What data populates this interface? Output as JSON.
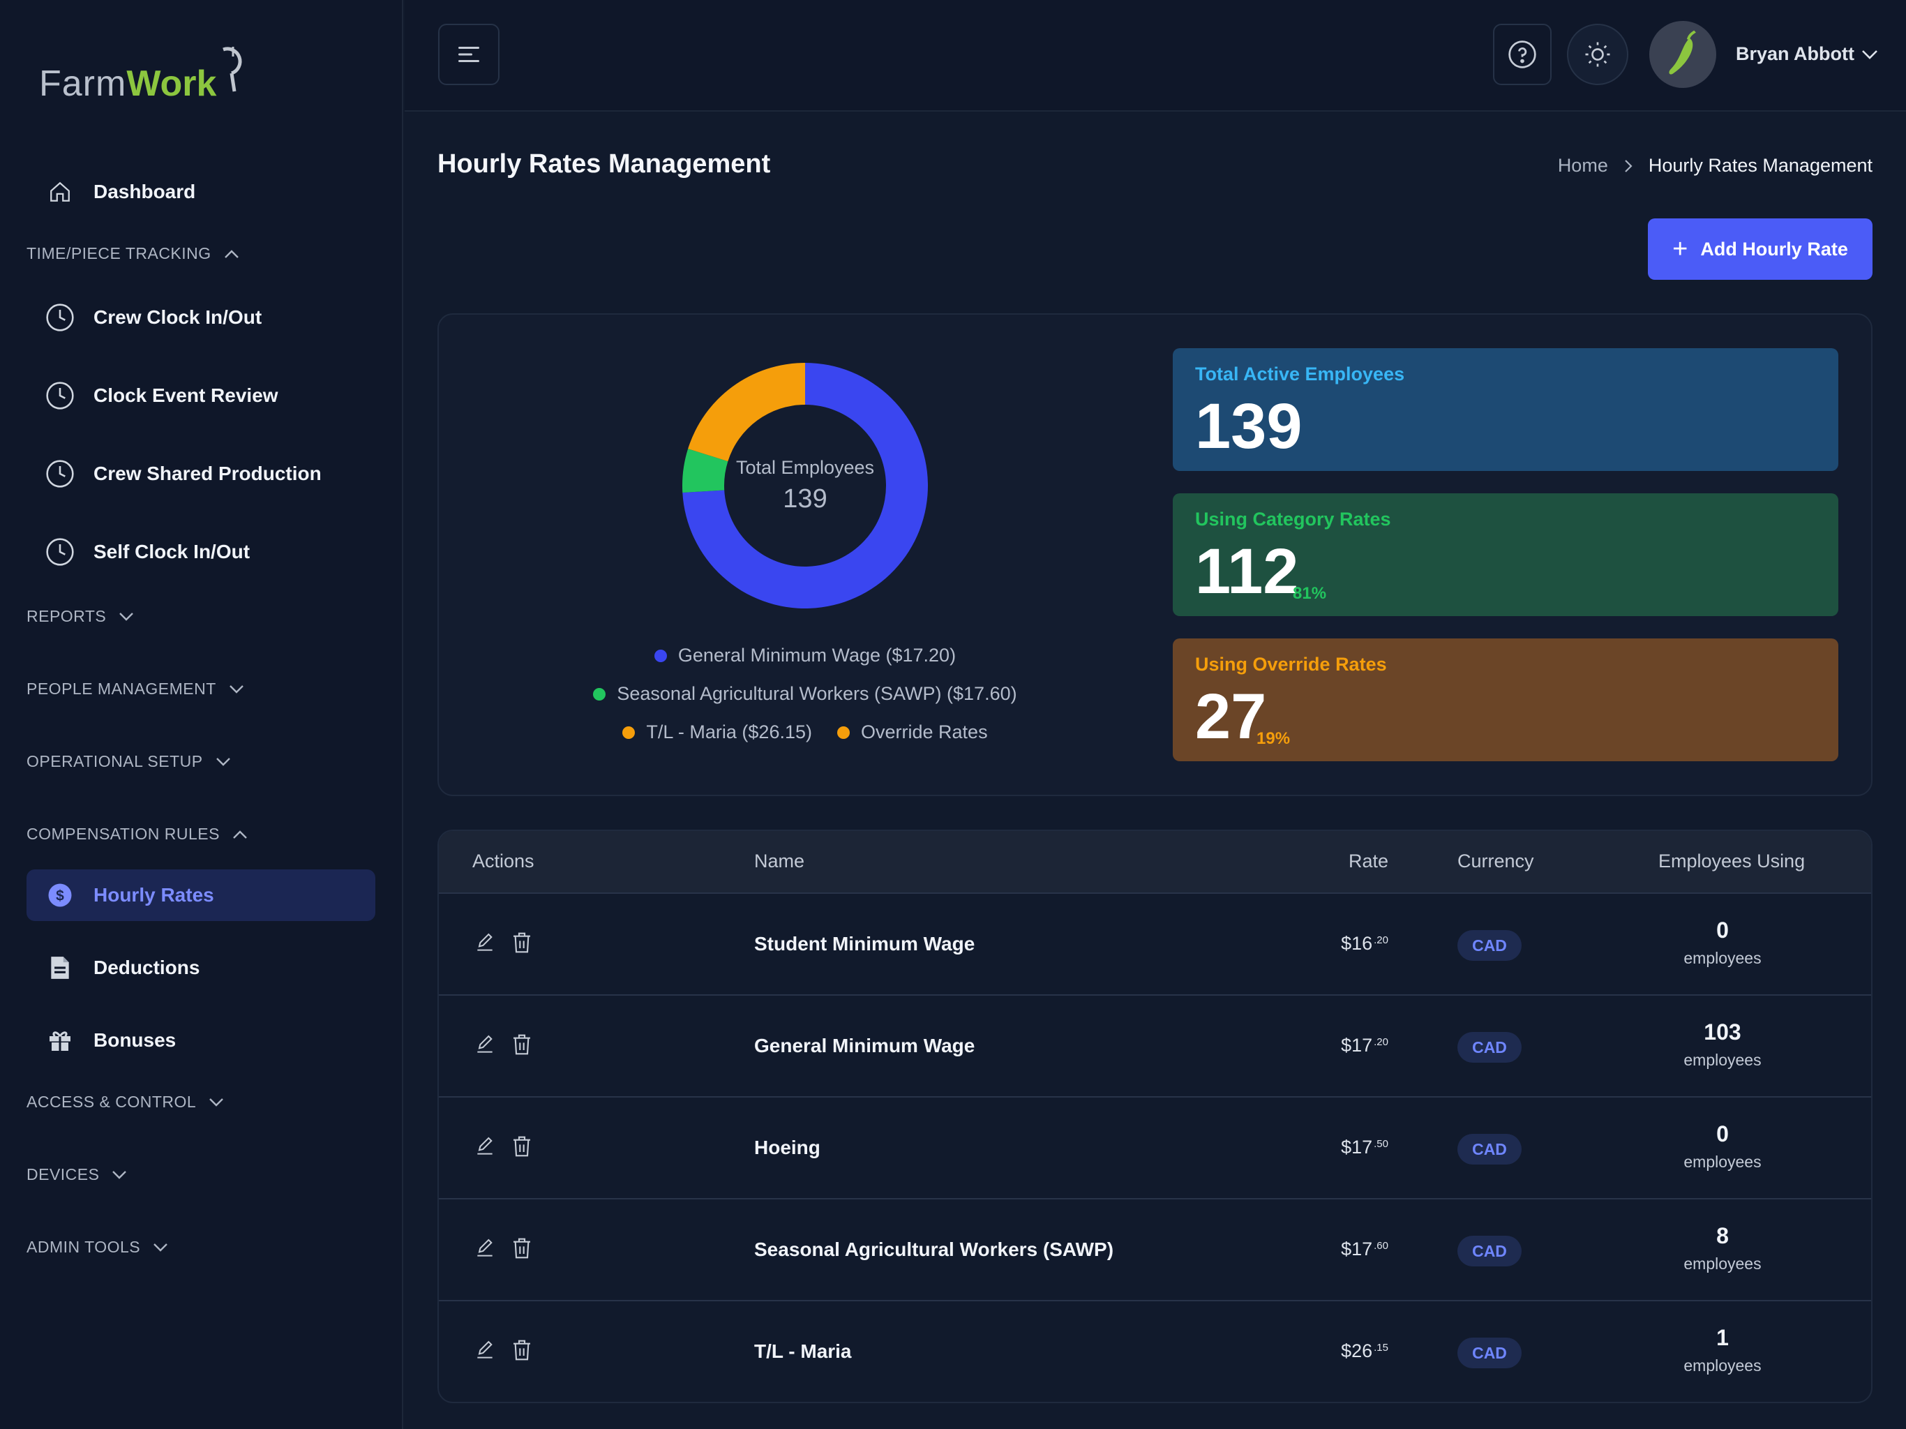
{
  "app": {
    "brand_a": "Farm",
    "brand_b": "Work"
  },
  "sidebar": {
    "dashboard": "Dashboard",
    "sections": {
      "time_tracking": "TIME/PIECE TRACKING",
      "reports": "REPORTS",
      "people": "PEOPLE MANAGEMENT",
      "operational": "OPERATIONAL SETUP",
      "compensation": "COMPENSATION RULES",
      "access": "ACCESS & CONTROL",
      "devices": "DEVICES",
      "admin": "ADMIN TOOLS"
    },
    "time_items": [
      "Crew Clock In/Out",
      "Clock Event Review",
      "Crew Shared Production",
      "Self Clock In/Out"
    ],
    "comp_items": [
      "Hourly Rates",
      "Deductions",
      "Bonuses"
    ]
  },
  "topbar": {
    "user_name": "Bryan Abbott"
  },
  "header": {
    "title": "Hourly Rates Management",
    "crumb_home": "Home",
    "crumb_current": "Hourly Rates Management",
    "add_button": "Add Hourly Rate",
    "add_plus": "+"
  },
  "donut": {
    "center_label": "Total Employees",
    "center_value": "139",
    "legend": [
      {
        "label": "General Minimum Wage ($17.20)",
        "color": "#3a46f0",
        "value": 103
      },
      {
        "label": "Seasonal Agricultural Workers (SAWP) ($17.60)",
        "color": "#22c55e",
        "value": 8
      },
      {
        "label": "T/L - Maria ($26.15)",
        "color": "#f59e0b",
        "value": 1
      },
      {
        "label": "Override Rates",
        "color": "#f59e0b",
        "value": 27
      }
    ]
  },
  "cards": {
    "total": {
      "title": "Total Active Employees",
      "value": "139",
      "bg": "#1d4a73",
      "title_color": "#38b6f5"
    },
    "category": {
      "title": "Using Category Rates",
      "value": "112",
      "pct": "81%",
      "bg": "#1e5140",
      "title_color": "#22c55e"
    },
    "override": {
      "title": "Using Override Rates",
      "value": "27",
      "pct": "19%",
      "bg": "#6b4527",
      "title_color": "#f59e0b"
    }
  },
  "table": {
    "headers": {
      "actions": "Actions",
      "name": "Name",
      "rate": "Rate",
      "currency": "Currency",
      "employees": "Employees Using"
    },
    "rows": [
      {
        "name": "Student Minimum Wage",
        "rate_main": "$16",
        "rate_cents": ".20",
        "currency": "CAD",
        "count": "0",
        "unit": "employees"
      },
      {
        "name": "General Minimum Wage",
        "rate_main": "$17",
        "rate_cents": ".20",
        "currency": "CAD",
        "count": "103",
        "unit": "employees"
      },
      {
        "name": "Hoeing",
        "rate_main": "$17",
        "rate_cents": ".50",
        "currency": "CAD",
        "count": "0",
        "unit": "employees"
      },
      {
        "name": "Seasonal Agricultural Workers (SAWP)",
        "rate_main": "$17",
        "rate_cents": ".60",
        "currency": "CAD",
        "count": "8",
        "unit": "employees"
      },
      {
        "name": "T/L - Maria",
        "rate_main": "$26",
        "rate_cents": ".15",
        "currency": "CAD",
        "count": "1",
        "unit": "employees"
      }
    ]
  }
}
